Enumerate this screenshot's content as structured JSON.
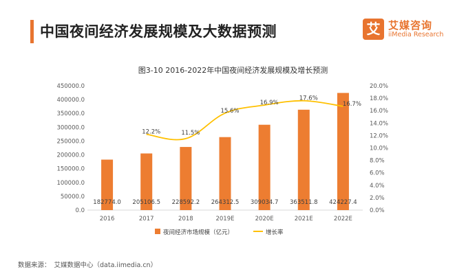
{
  "header": {
    "title": "中国夜间经济发展规模及大数据预测"
  },
  "logo": {
    "mark": "艾",
    "name_cn": "艾媒咨询",
    "name_en": "iiMedia Research"
  },
  "source": {
    "label": "数据来源：",
    "text": "艾媒数据中心（data.iimedia.cn）"
  },
  "colors": {
    "accent": "#e8742f",
    "bar": "#ed7d31",
    "line": "#ffc000"
  },
  "chart_data": {
    "type": "bar",
    "title": "图3-10 2016-2022年中国夜间经济发展规模及增长预测",
    "categories": [
      "2016",
      "2017",
      "2018",
      "2019E",
      "2020E",
      "2021E",
      "2022E"
    ],
    "series": [
      {
        "name": "夜间经济市场规模（亿元）",
        "type": "bar",
        "axis": "left",
        "values": [
          182774.0,
          205106.5,
          228592.2,
          264312.5,
          309034.7,
          363511.8,
          424227.4
        ],
        "labels": [
          "182774.0",
          "205106.5",
          "228592.2",
          "264312.5",
          "309034.7",
          "363511.8",
          "424227.4"
        ]
      },
      {
        "name": "增长率",
        "type": "line",
        "axis": "right",
        "values": [
          null,
          12.2,
          11.5,
          15.6,
          16.9,
          17.6,
          16.7
        ],
        "labels": [
          "",
          "12.2%",
          "11.5%",
          "15.6%",
          "16.9%",
          "17.6%",
          "16.7%"
        ]
      }
    ],
    "y_left": {
      "lim": [
        0,
        450000
      ],
      "ticks": [
        "0.0",
        "50000.0",
        "100000.0",
        "150000.0",
        "200000.0",
        "250000.0",
        "300000.0",
        "350000.0",
        "400000.0",
        "450000.0"
      ]
    },
    "y_right": {
      "lim": [
        0,
        20
      ],
      "ticks": [
        "0.0%",
        "2.0%",
        "4.0%",
        "6.0%",
        "8.0%",
        "10.0%",
        "12.0%",
        "14.0%",
        "16.0%",
        "18.0%",
        "20.0%"
      ]
    },
    "legend_position": "bottom",
    "grid": false
  }
}
